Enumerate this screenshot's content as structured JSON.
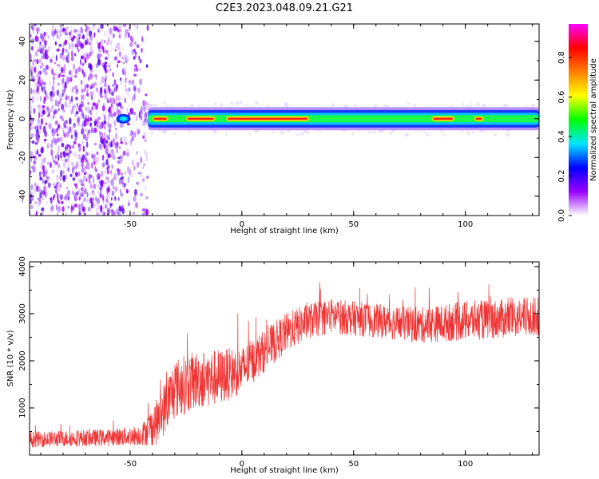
{
  "title": "C2E3.2023.048.09.21.G21",
  "chart_data": [
    {
      "type": "heatmap",
      "xlabel": "Height of straight line (km)",
      "ylabel": "Frequency (Hz)",
      "xlim": [
        -95,
        133
      ],
      "ylim": [
        -50,
        49
      ],
      "xticks": [
        -50,
        0,
        50,
        100
      ],
      "yticks": [
        -40,
        -20,
        0,
        20,
        40
      ],
      "colorbar": {
        "label": "Normalized spectral amplitude",
        "range": [
          0.0,
          0.97
        ],
        "ticks": [
          0.0,
          0.2,
          0.4,
          0.6,
          0.8
        ],
        "colors": [
          "#ffffff",
          "#9a00ff",
          "#0000ff",
          "#00e6ff",
          "#00ff00",
          "#ffff00",
          "#ff7f00",
          "#ff0000",
          "#ff00ff"
        ]
      },
      "noise_region_x": [
        -95,
        -42
      ],
      "signal_band_center_hz": 0,
      "signal_band_halfwidth_hz": 2.5,
      "peak_segments_x": [
        [
          -40,
          -33
        ],
        [
          -25,
          -12
        ],
        [
          -7,
          30
        ],
        [
          85,
          95
        ],
        [
          104,
          108
        ]
      ],
      "background_halo_x": [
        -45,
        133
      ]
    },
    {
      "type": "line",
      "xlabel": "Height of straight line (km)",
      "ylabel": "SNR (10 * v/v)",
      "xlim": [
        -95,
        133
      ],
      "ylim": [
        0,
        4100
      ],
      "xticks": [
        -50,
        0,
        50,
        100
      ],
      "yticks": [
        1000,
        2000,
        3000,
        4000
      ],
      "series": [
        {
          "color": "#ee3333",
          "trend_x": [
            -95,
            -80,
            -60,
            -45,
            -38,
            -30,
            -20,
            -10,
            0,
            10,
            20,
            30,
            40,
            60,
            80,
            100,
            120,
            133
          ],
          "trend_y": [
            330,
            350,
            370,
            420,
            700,
            1400,
            1600,
            1650,
            1800,
            2200,
            2600,
            2850,
            2950,
            2850,
            2750,
            2850,
            2900,
            2950
          ],
          "spread": [
            170,
            170,
            180,
            220,
            500,
            650,
            620,
            600,
            500,
            450,
            420,
            380,
            380,
            360,
            380,
            420,
            420,
            420
          ],
          "start_x": -95,
          "end_x": 133,
          "n_points": 2000
        }
      ]
    }
  ]
}
